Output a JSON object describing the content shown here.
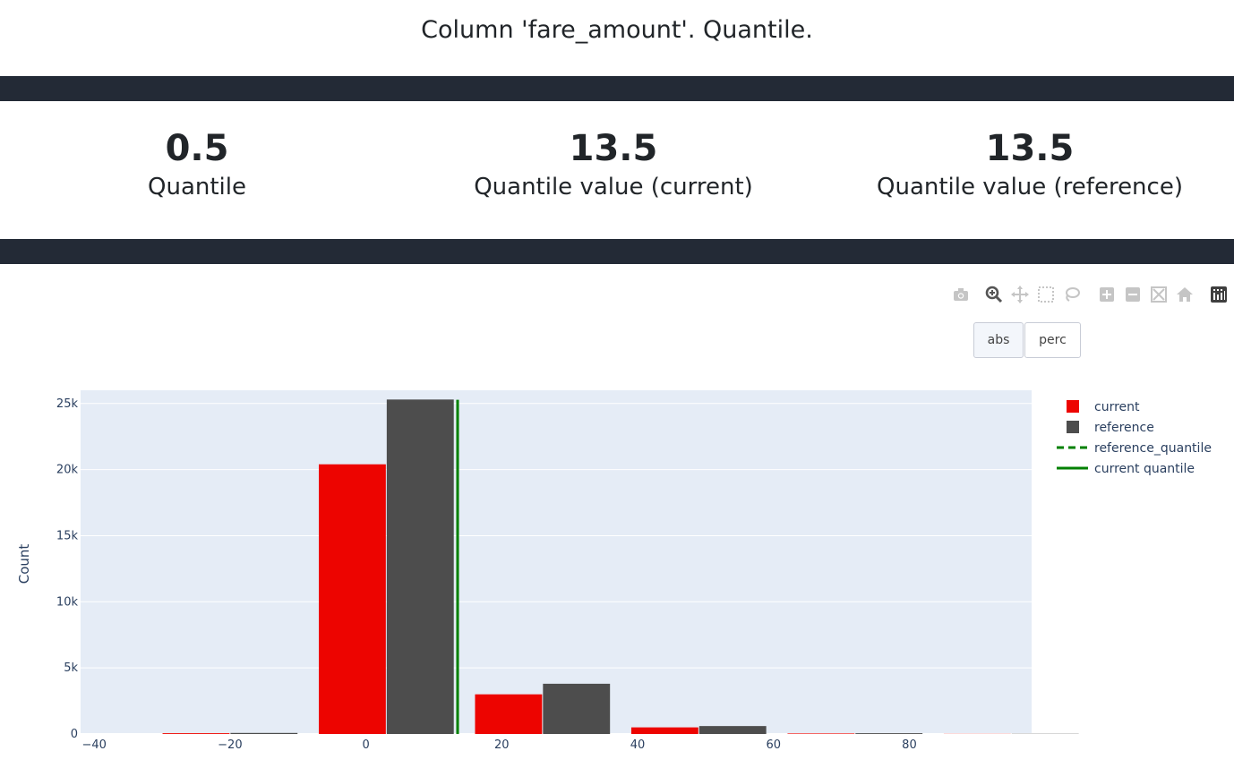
{
  "title": "Column 'fare_amount'. Quantile.",
  "metrics": [
    {
      "value": "0.5",
      "label": "Quantile"
    },
    {
      "value": "13.5",
      "label": "Quantile value (current)"
    },
    {
      "value": "13.5",
      "label": "Quantile value (reference)"
    }
  ],
  "buttons": {
    "abs": "abs",
    "perc": "perc"
  },
  "modebar_icons": [
    "camera-icon",
    "zoom-icon",
    "pan-icon",
    "box-select-icon",
    "lasso-icon",
    "zoom-in-icon",
    "zoom-out-icon",
    "autoscale-icon",
    "home-icon",
    "plotly-logo-icon"
  ],
  "chart_data": {
    "type": "bar",
    "ylabel": "Count",
    "xlim": [
      -42,
      98
    ],
    "ylim": [
      0,
      26000
    ],
    "x_ticks": [
      -40,
      -20,
      0,
      20,
      40,
      60,
      80
    ],
    "x_tick_labels": [
      "−40",
      "−20",
      "0",
      "20",
      "40",
      "60",
      "80"
    ],
    "y_ticks": [
      0,
      5000,
      10000,
      15000,
      20000,
      25000
    ],
    "y_tick_labels": [
      "0",
      "5k",
      "10k",
      "15k",
      "20k",
      "25k"
    ],
    "bin_width": 20,
    "bins": [
      -30,
      -7,
      16,
      39,
      62,
      85
    ],
    "series": [
      {
        "name": "current",
        "color": "#ed0400",
        "values": [
          60,
          20400,
          3000,
          500,
          40,
          10
        ]
      },
      {
        "name": "reference",
        "color": "#4d4d4d",
        "values": [
          80,
          25300,
          3800,
          600,
          60,
          15
        ]
      }
    ],
    "lines": [
      {
        "name": "reference_quantile",
        "x": 13.5,
        "color": "#008000",
        "dash": true
      },
      {
        "name": "current quantile",
        "x": 13.5,
        "color": "#008000",
        "dash": false
      }
    ],
    "legend_position": "top-right",
    "grid": true
  }
}
